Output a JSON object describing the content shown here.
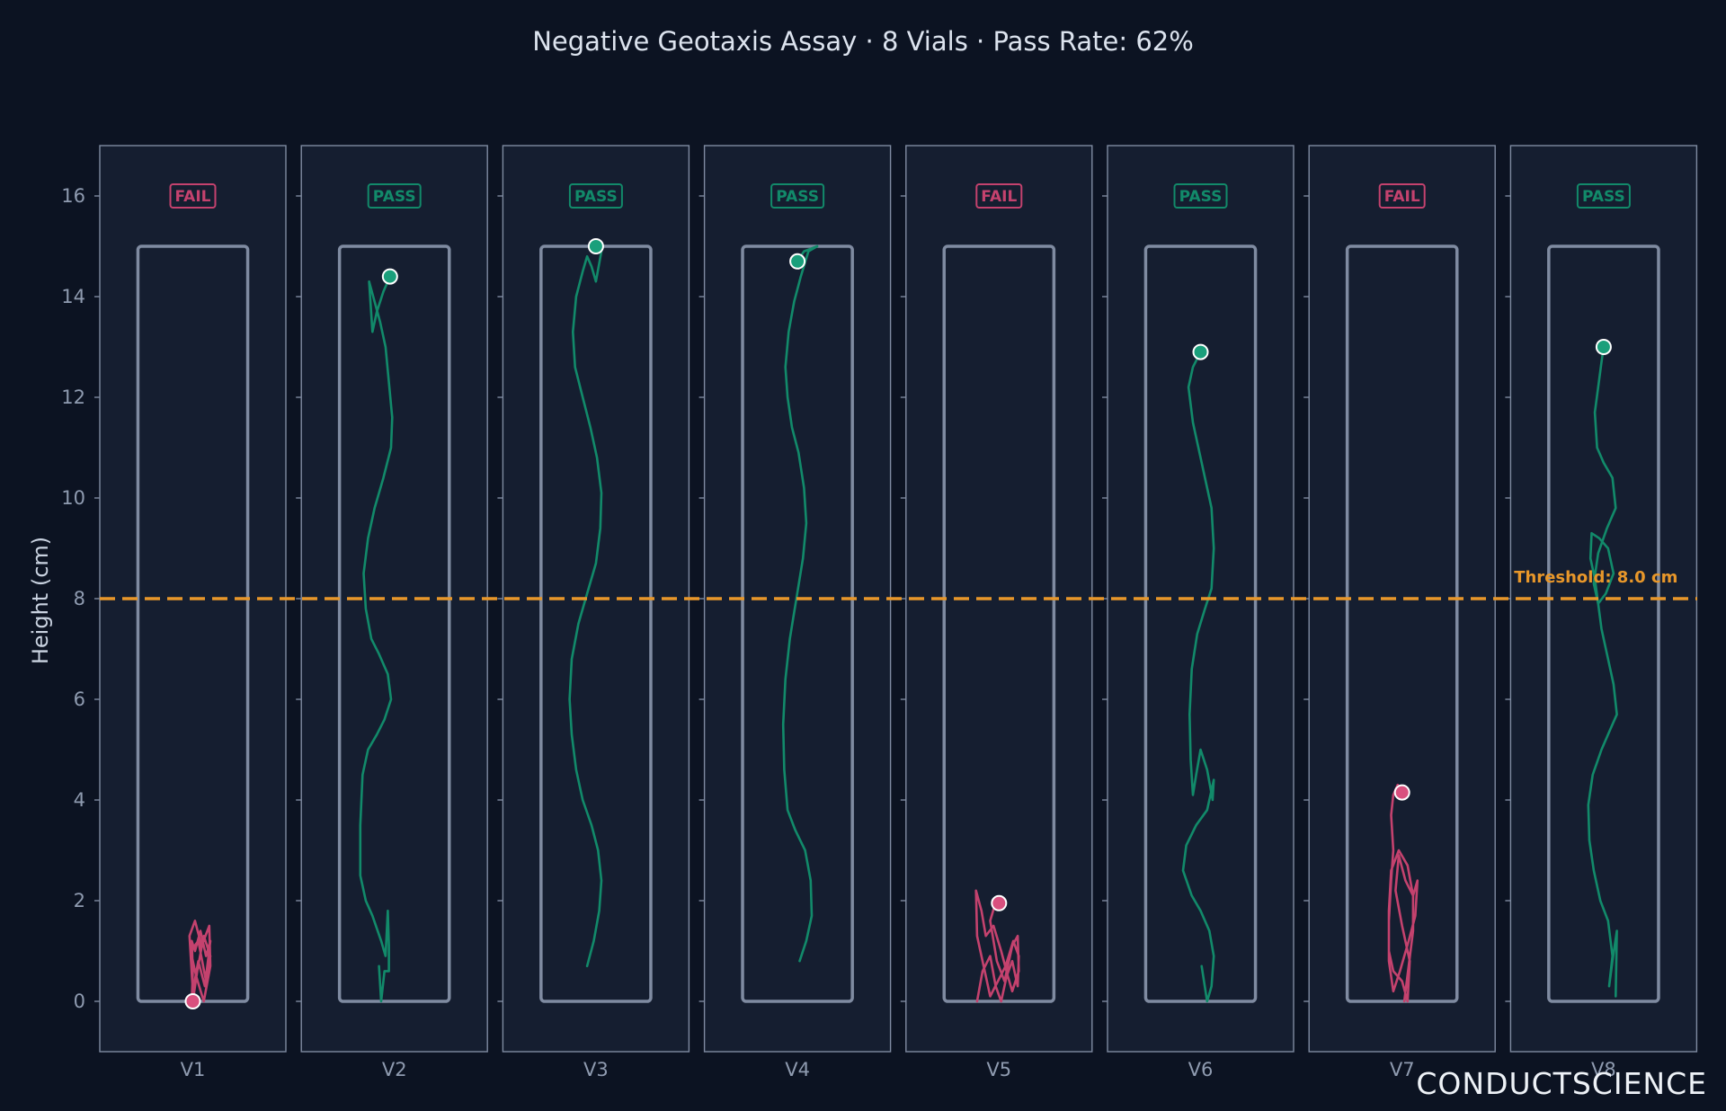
{
  "colors": {
    "background": "#0c1322",
    "panel": "#151e30",
    "panel_border": "#7f8ba1",
    "vial": "#7f8ba1",
    "pass": "#128a6a",
    "pass_marker": "#1a9f7b",
    "fail": "#c4426e",
    "fail_marker": "#d9507e",
    "threshold": "#e8972a"
  },
  "branding": {
    "logo_text": "CONDUCTSCIENCE"
  },
  "chart_data": {
    "type": "line",
    "title": "Negative Geotaxis Assay · 8 Vials · Pass Rate: 62%",
    "ylabel": "Height (cm)",
    "xlabel": "",
    "ylim": [
      -1,
      17
    ],
    "yticks": [
      0,
      2,
      4,
      6,
      8,
      10,
      12,
      14,
      16
    ],
    "grid": false,
    "threshold": {
      "value": 8.0,
      "label": "Threshold: 8.0 cm"
    },
    "series": [
      {
        "name": "V1",
        "status": "FAIL",
        "final_height": 0.0,
        "trajectory": [
          [
            0.49,
            0.0
          ],
          [
            0.5,
            0.6
          ],
          [
            0.49,
            1.2
          ],
          [
            0.52,
            1.0
          ],
          [
            0.57,
            1.4
          ],
          [
            0.62,
            0.9
          ],
          [
            0.66,
            1.2
          ],
          [
            0.61,
            0.3
          ],
          [
            0.55,
            0.8
          ],
          [
            0.5,
            0.2
          ],
          [
            0.47,
            1.3
          ],
          [
            0.52,
            1.6
          ],
          [
            0.58,
            1.1
          ],
          [
            0.65,
            1.5
          ],
          [
            0.66,
            0.7
          ],
          [
            0.6,
            0.0
          ],
          [
            0.53,
            0.5
          ],
          [
            0.48,
            1.0
          ],
          [
            0.55,
            1.2
          ],
          [
            0.62,
            0.4
          ],
          [
            0.66,
            0.9
          ],
          [
            0.6,
            1.3
          ],
          [
            0.54,
            0.6
          ],
          [
            0.5,
            0.0
          ]
        ]
      },
      {
        "name": "V2",
        "status": "PASS",
        "final_height": 14.4,
        "trajectory": [
          [
            0.36,
            0.7
          ],
          [
            0.38,
            0.0
          ],
          [
            0.41,
            0.6
          ],
          [
            0.45,
            0.6
          ],
          [
            0.45,
            1.1
          ],
          [
            0.44,
            1.8
          ],
          [
            0.42,
            0.9
          ],
          [
            0.38,
            1.2
          ],
          [
            0.3,
            1.7
          ],
          [
            0.24,
            2.0
          ],
          [
            0.19,
            2.5
          ],
          [
            0.19,
            3.5
          ],
          [
            0.21,
            4.5
          ],
          [
            0.26,
            5.0
          ],
          [
            0.34,
            5.3
          ],
          [
            0.41,
            5.6
          ],
          [
            0.47,
            6.0
          ],
          [
            0.44,
            6.5
          ],
          [
            0.36,
            6.9
          ],
          [
            0.29,
            7.2
          ],
          [
            0.24,
            7.8
          ],
          [
            0.22,
            8.5
          ],
          [
            0.26,
            9.2
          ],
          [
            0.32,
            9.8
          ],
          [
            0.4,
            10.4
          ],
          [
            0.47,
            11.0
          ],
          [
            0.48,
            11.6
          ],
          [
            0.45,
            12.3
          ],
          [
            0.42,
            13.0
          ],
          [
            0.37,
            13.5
          ],
          [
            0.32,
            13.9
          ],
          [
            0.27,
            14.3
          ],
          [
            0.3,
            13.3
          ],
          [
            0.34,
            13.7
          ],
          [
            0.4,
            14.1
          ],
          [
            0.46,
            14.4
          ]
        ]
      },
      {
        "name": "V3",
        "status": "PASS",
        "final_height": 15.0,
        "trajectory": [
          [
            0.42,
            0.7
          ],
          [
            0.48,
            1.2
          ],
          [
            0.53,
            1.8
          ],
          [
            0.55,
            2.4
          ],
          [
            0.52,
            3.0
          ],
          [
            0.46,
            3.5
          ],
          [
            0.38,
            4.0
          ],
          [
            0.32,
            4.6
          ],
          [
            0.28,
            5.3
          ],
          [
            0.26,
            6.0
          ],
          [
            0.28,
            6.8
          ],
          [
            0.34,
            7.5
          ],
          [
            0.42,
            8.1
          ],
          [
            0.5,
            8.7
          ],
          [
            0.54,
            9.4
          ],
          [
            0.55,
            10.1
          ],
          [
            0.51,
            10.8
          ],
          [
            0.45,
            11.4
          ],
          [
            0.38,
            12.0
          ],
          [
            0.31,
            12.6
          ],
          [
            0.29,
            13.3
          ],
          [
            0.32,
            14.0
          ],
          [
            0.38,
            14.5
          ],
          [
            0.42,
            14.8
          ],
          [
            0.46,
            14.6
          ],
          [
            0.5,
            14.3
          ],
          [
            0.55,
            14.9
          ],
          [
            0.48,
            15.0
          ],
          [
            0.5,
            15.0
          ]
        ]
      },
      {
        "name": "V4",
        "status": "PASS",
        "final_height": 14.7,
        "trajectory": [
          [
            0.52,
            0.8
          ],
          [
            0.58,
            1.2
          ],
          [
            0.63,
            1.7
          ],
          [
            0.62,
            2.4
          ],
          [
            0.57,
            3.0
          ],
          [
            0.48,
            3.4
          ],
          [
            0.41,
            3.8
          ],
          [
            0.38,
            4.6
          ],
          [
            0.37,
            5.5
          ],
          [
            0.39,
            6.4
          ],
          [
            0.43,
            7.2
          ],
          [
            0.49,
            8.0
          ],
          [
            0.55,
            8.8
          ],
          [
            0.58,
            9.5
          ],
          [
            0.56,
            10.2
          ],
          [
            0.51,
            10.9
          ],
          [
            0.45,
            11.4
          ],
          [
            0.41,
            12.0
          ],
          [
            0.39,
            12.6
          ],
          [
            0.42,
            13.3
          ],
          [
            0.47,
            13.9
          ],
          [
            0.53,
            14.4
          ],
          [
            0.6,
            14.9
          ],
          [
            0.68,
            15.0
          ],
          [
            0.56,
            14.9
          ],
          [
            0.5,
            14.7
          ]
        ]
      },
      {
        "name": "V5",
        "status": "FAIL",
        "final_height": 1.95,
        "trajectory": [
          [
            0.3,
            0.0
          ],
          [
            0.35,
            0.6
          ],
          [
            0.42,
            0.9
          ],
          [
            0.47,
            0.3
          ],
          [
            0.52,
            0.0
          ],
          [
            0.57,
            0.5
          ],
          [
            0.62,
            0.8
          ],
          [
            0.67,
            0.3
          ],
          [
            0.68,
            0.9
          ],
          [
            0.63,
            1.2
          ],
          [
            0.56,
            0.7
          ],
          [
            0.49,
            0.4
          ],
          [
            0.42,
            0.1
          ],
          [
            0.36,
            0.7
          ],
          [
            0.3,
            1.3
          ],
          [
            0.29,
            2.2
          ],
          [
            0.34,
            1.8
          ],
          [
            0.38,
            1.3
          ],
          [
            0.45,
            1.5
          ],
          [
            0.52,
            1.0
          ],
          [
            0.58,
            0.5
          ],
          [
            0.62,
            0.2
          ],
          [
            0.68,
            0.6
          ],
          [
            0.67,
            1.3
          ],
          [
            0.62,
            1.1
          ],
          [
            0.55,
            0.4
          ],
          [
            0.48,
            0.8
          ],
          [
            0.42,
            1.6
          ],
          [
            0.46,
            1.9
          ],
          [
            0.5,
            1.95
          ]
        ]
      },
      {
        "name": "V6",
        "status": "PASS",
        "final_height": 12.9,
        "trajectory": [
          [
            0.51,
            0.7
          ],
          [
            0.56,
            0.0
          ],
          [
            0.6,
            0.3
          ],
          [
            0.62,
            0.9
          ],
          [
            0.58,
            1.4
          ],
          [
            0.5,
            1.8
          ],
          [
            0.42,
            2.1
          ],
          [
            0.34,
            2.6
          ],
          [
            0.37,
            3.1
          ],
          [
            0.46,
            3.5
          ],
          [
            0.56,
            3.8
          ],
          [
            0.62,
            4.4
          ],
          [
            0.61,
            4.0
          ],
          [
            0.56,
            4.6
          ],
          [
            0.5,
            5.0
          ],
          [
            0.46,
            4.5
          ],
          [
            0.43,
            4.1
          ],
          [
            0.41,
            4.8
          ],
          [
            0.4,
            5.7
          ],
          [
            0.42,
            6.6
          ],
          [
            0.47,
            7.3
          ],
          [
            0.54,
            7.8
          ],
          [
            0.6,
            8.2
          ],
          [
            0.62,
            9.0
          ],
          [
            0.6,
            9.8
          ],
          [
            0.55,
            10.3
          ],
          [
            0.49,
            10.9
          ],
          [
            0.43,
            11.5
          ],
          [
            0.39,
            12.2
          ],
          [
            0.43,
            12.6
          ],
          [
            0.5,
            12.9
          ]
        ]
      },
      {
        "name": "V7",
        "status": "FAIL",
        "final_height": 4.15,
        "trajectory": [
          [
            0.52,
            0.0
          ],
          [
            0.56,
            0.7
          ],
          [
            0.6,
            1.4
          ],
          [
            0.6,
            2.1
          ],
          [
            0.55,
            2.7
          ],
          [
            0.47,
            3.0
          ],
          [
            0.4,
            2.6
          ],
          [
            0.38,
            1.8
          ],
          [
            0.38,
            1.0
          ],
          [
            0.42,
            0.6
          ],
          [
            0.5,
            0.4
          ],
          [
            0.55,
            0.0
          ],
          [
            0.57,
            0.8
          ],
          [
            0.5,
            1.5
          ],
          [
            0.44,
            2.2
          ],
          [
            0.47,
            2.9
          ],
          [
            0.53,
            2.4
          ],
          [
            0.6,
            2.1
          ],
          [
            0.64,
            2.4
          ],
          [
            0.62,
            1.7
          ],
          [
            0.56,
            1.2
          ],
          [
            0.48,
            0.6
          ],
          [
            0.42,
            0.2
          ],
          [
            0.38,
            0.8
          ],
          [
            0.38,
            1.6
          ],
          [
            0.4,
            2.4
          ],
          [
            0.42,
            3.0
          ],
          [
            0.4,
            3.7
          ],
          [
            0.42,
            4.1
          ],
          [
            0.46,
            4.3
          ],
          [
            0.5,
            4.15
          ]
        ]
      },
      {
        "name": "V8",
        "status": "PASS",
        "final_height": 13.0,
        "trajectory": [
          [
            0.61,
            0.1
          ],
          [
            0.62,
            1.4
          ],
          [
            0.58,
            0.8
          ],
          [
            0.55,
            0.3
          ],
          [
            0.58,
            0.9
          ],
          [
            0.54,
            1.6
          ],
          [
            0.47,
            2.0
          ],
          [
            0.41,
            2.6
          ],
          [
            0.37,
            3.2
          ],
          [
            0.36,
            3.9
          ],
          [
            0.4,
            4.5
          ],
          [
            0.48,
            5.0
          ],
          [
            0.56,
            5.4
          ],
          [
            0.62,
            5.7
          ],
          [
            0.59,
            6.3
          ],
          [
            0.53,
            6.9
          ],
          [
            0.48,
            7.4
          ],
          [
            0.45,
            7.9
          ],
          [
            0.42,
            8.4
          ],
          [
            0.38,
            8.8
          ],
          [
            0.39,
            9.3
          ],
          [
            0.46,
            9.2
          ],
          [
            0.54,
            9.0
          ],
          [
            0.59,
            8.5
          ],
          [
            0.52,
            8.1
          ],
          [
            0.45,
            7.9
          ],
          [
            0.41,
            8.3
          ],
          [
            0.45,
            8.9
          ],
          [
            0.53,
            9.4
          ],
          [
            0.61,
            9.8
          ],
          [
            0.58,
            10.4
          ],
          [
            0.5,
            10.7
          ],
          [
            0.44,
            11.0
          ],
          [
            0.42,
            11.7
          ],
          [
            0.45,
            12.2
          ],
          [
            0.48,
            12.7
          ],
          [
            0.5,
            13.0
          ]
        ]
      }
    ]
  }
}
